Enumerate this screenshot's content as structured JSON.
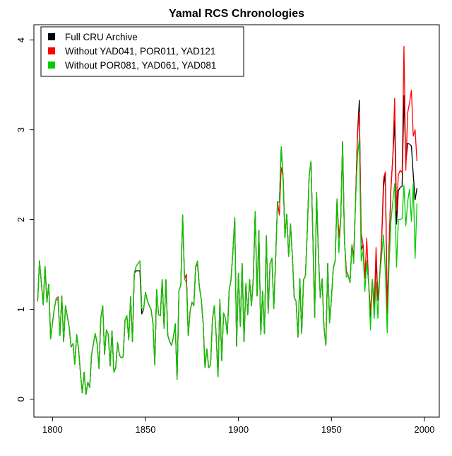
{
  "chart_data": {
    "type": "line",
    "title": "Yamal RCS Chronologies",
    "xlabel": "",
    "ylabel": "",
    "xlim": [
      1790,
      2008
    ],
    "ylim": [
      -0.2,
      4.17
    ],
    "x_ticks": [
      1800,
      1850,
      1900,
      1950,
      2000
    ],
    "x_tick_labels": [
      "1800",
      "1850",
      "1900",
      "1950",
      "2000"
    ],
    "y_ticks": [
      0,
      1,
      2,
      3,
      4
    ],
    "y_tick_labels": [
      "0",
      "1",
      "2",
      "3",
      "4"
    ],
    "grid": false,
    "legend_position": "top-left",
    "x_start": 1792,
    "x_step": 1,
    "series": [
      {
        "name": "Full CRU Archive",
        "color": "#000000",
        "values": [
          1.09,
          1.54,
          1.3,
          1.05,
          1.48,
          1.08,
          1.28,
          0.67,
          0.85,
          1.01,
          1.12,
          1.1,
          0.71,
          1.15,
          0.64,
          1.04,
          0.92,
          0.8,
          0.58,
          0.62,
          0.39,
          0.72,
          0.56,
          0.3,
          0.07,
          0.3,
          0.05,
          0.19,
          0.13,
          0.49,
          0.62,
          0.73,
          0.62,
          0.34,
          0.91,
          1.04,
          0.5,
          0.77,
          0.72,
          0.37,
          0.76,
          0.3,
          0.35,
          0.63,
          0.49,
          0.46,
          0.47,
          0.88,
          0.93,
          0.66,
          1.14,
          0.64,
          1.4,
          1.43,
          1.43,
          1.43,
          0.95,
          1.0,
          1.19,
          1.1,
          1.04,
          1.0,
          0.85,
          0.38,
          1.22,
          0.94,
          0.93,
          1.33,
          0.79,
          1.33,
          0.71,
          0.64,
          0.6,
          0.69,
          0.84,
          0.22,
          1.21,
          1.27,
          2.05,
          1.34,
          1.39,
          0.71,
          0.98,
          1.08,
          1.04,
          1.48,
          1.5,
          1.25,
          1.11,
          0.85,
          0.35,
          0.56,
          0.35,
          0.38,
          0.88,
          1.04,
          0.72,
          0.25,
          1.11,
          0.43,
          0.96,
          0.9,
          0.72,
          1.21,
          1.33,
          1.64,
          2.02,
          0.59,
          1.4,
          0.81,
          1.51,
          0.64,
          1.29,
          0.94,
          1.33,
          1.04,
          1.35,
          2.09,
          1.15,
          1.88,
          0.72,
          1.2,
          0.73,
          1.82,
          0.96,
          1.51,
          1.57,
          1.01,
          1.56,
          2.2,
          2.19,
          2.81,
          2.48,
          1.8,
          2.06,
          1.59,
          1.95,
          1.59,
          1.13,
          1.09,
          0.69,
          1.34,
          0.73,
          1.33,
          1.37,
          1.88,
          2.48,
          2.65,
          1.82,
          0.91,
          2.3,
          1.61,
          1.13,
          1.34,
          0.8,
          0.6,
          1.51,
          0.85,
          1.12,
          1.46,
          1.54,
          2.23,
          1.8,
          2.01,
          2.87,
          1.77,
          1.43,
          1.38,
          1.3,
          1.72,
          1.59,
          2.22,
          2.95,
          3.33,
          1.66,
          1.72,
          1.35,
          1.54,
          1.3,
          0.85,
          1.33,
          1.03,
          1.55,
          1.1,
          1.38,
          1.77,
          2.35,
          2.53,
          0.95,
          1.7,
          2.35,
          2.69,
          3.1,
          1.95,
          2.32,
          2.36,
          2.37,
          3.38,
          2.63,
          2.85,
          2.84,
          2.82,
          2.5,
          2.22,
          2.35
        ]
      },
      {
        "name": "Without YAD041, POR011, YAD121",
        "color": "#ff0000",
        "values": [
          1.09,
          1.54,
          1.3,
          1.05,
          1.48,
          1.08,
          1.28,
          0.67,
          0.85,
          1.01,
          1.12,
          1.14,
          0.71,
          1.15,
          0.64,
          1.04,
          0.92,
          0.8,
          0.58,
          0.62,
          0.39,
          0.72,
          0.56,
          0.3,
          0.07,
          0.3,
          0.05,
          0.19,
          0.13,
          0.49,
          0.62,
          0.73,
          0.62,
          0.34,
          0.91,
          1.04,
          0.5,
          0.77,
          0.72,
          0.37,
          0.76,
          0.3,
          0.35,
          0.63,
          0.49,
          0.46,
          0.47,
          0.88,
          0.93,
          0.66,
          1.14,
          0.64,
          1.4,
          1.48,
          1.51,
          1.54,
          1.01,
          1.0,
          1.19,
          1.1,
          1.04,
          1.0,
          0.85,
          0.38,
          1.22,
          0.94,
          0.93,
          1.33,
          0.79,
          1.33,
          0.71,
          0.64,
          0.6,
          0.69,
          0.84,
          0.22,
          1.21,
          1.27,
          2.05,
          1.34,
          1.39,
          0.71,
          0.98,
          1.08,
          1.04,
          1.48,
          1.5,
          1.25,
          1.11,
          0.85,
          0.35,
          0.56,
          0.35,
          0.38,
          0.88,
          1.04,
          0.72,
          0.25,
          1.11,
          0.43,
          0.96,
          0.9,
          0.72,
          1.21,
          1.33,
          1.64,
          2.02,
          0.59,
          1.4,
          0.81,
          1.51,
          0.64,
          1.29,
          0.94,
          1.33,
          1.04,
          1.35,
          2.09,
          1.15,
          1.88,
          0.72,
          1.2,
          0.73,
          1.82,
          0.96,
          1.51,
          1.57,
          1.01,
          1.56,
          2.2,
          2.05,
          2.58,
          2.48,
          1.8,
          2.06,
          1.59,
          1.95,
          1.59,
          1.13,
          1.09,
          0.69,
          1.34,
          0.73,
          1.33,
          1.37,
          1.88,
          2.48,
          2.65,
          1.82,
          0.91,
          2.3,
          1.61,
          1.13,
          1.34,
          0.8,
          0.6,
          1.51,
          0.85,
          1.12,
          1.46,
          1.54,
          2.23,
          1.8,
          2.01,
          2.87,
          1.77,
          1.43,
          1.38,
          1.3,
          1.72,
          1.59,
          2.22,
          2.95,
          3.2,
          1.85,
          1.72,
          1.35,
          1.79,
          1.3,
          0.97,
          1.33,
          1.03,
          1.69,
          1.1,
          1.38,
          1.77,
          2.46,
          2.53,
          0.95,
          1.7,
          2.35,
          2.7,
          3.35,
          2.1,
          2.5,
          2.55,
          2.52,
          3.93,
          2.55,
          3.19,
          3.3,
          3.44,
          2.93,
          3.0,
          2.65
        ]
      },
      {
        "name": "Without POR081, YAD061, YAD081",
        "color": "#00cc00",
        "values": [
          1.09,
          1.54,
          1.3,
          1.05,
          1.48,
          1.08,
          1.28,
          0.67,
          0.85,
          1.01,
          1.12,
          1.1,
          0.71,
          1.15,
          0.64,
          1.04,
          0.92,
          0.8,
          0.58,
          0.62,
          0.39,
          0.72,
          0.56,
          0.3,
          0.07,
          0.3,
          0.05,
          0.19,
          0.13,
          0.49,
          0.62,
          0.73,
          0.62,
          0.34,
          0.91,
          1.04,
          0.5,
          0.77,
          0.72,
          0.37,
          0.76,
          0.3,
          0.35,
          0.63,
          0.49,
          0.46,
          0.47,
          0.88,
          0.93,
          0.66,
          1.14,
          0.64,
          1.4,
          1.48,
          1.51,
          1.54,
          1.01,
          1.0,
          1.19,
          1.1,
          1.04,
          1.0,
          0.85,
          0.38,
          1.22,
          0.94,
          0.93,
          1.33,
          0.79,
          1.33,
          0.71,
          0.64,
          0.6,
          0.69,
          0.84,
          0.22,
          1.21,
          1.27,
          2.05,
          1.34,
          1.3,
          0.71,
          0.98,
          1.08,
          1.04,
          1.48,
          1.54,
          1.25,
          1.11,
          0.85,
          0.35,
          0.56,
          0.35,
          0.38,
          0.88,
          1.04,
          0.72,
          0.25,
          1.11,
          0.43,
          0.96,
          0.9,
          0.72,
          1.21,
          1.33,
          1.64,
          2.02,
          0.59,
          1.4,
          0.81,
          1.51,
          0.64,
          1.29,
          0.94,
          1.33,
          1.04,
          1.35,
          2.09,
          1.15,
          1.88,
          0.72,
          1.2,
          0.73,
          1.82,
          0.96,
          1.51,
          1.57,
          1.01,
          1.56,
          2.2,
          2.19,
          2.81,
          2.48,
          1.8,
          2.06,
          1.59,
          1.95,
          1.59,
          1.13,
          1.09,
          0.69,
          1.34,
          0.73,
          1.33,
          1.37,
          1.88,
          2.48,
          2.65,
          1.82,
          0.91,
          2.3,
          1.61,
          1.13,
          1.34,
          0.8,
          0.6,
          1.51,
          0.85,
          1.12,
          1.46,
          1.54,
          2.23,
          1.63,
          2.01,
          2.87,
          1.77,
          1.36,
          1.38,
          1.3,
          1.72,
          1.51,
          2.22,
          2.7,
          2.9,
          1.54,
          1.65,
          1.2,
          1.54,
          1.3,
          0.77,
          1.33,
          0.9,
          1.3,
          0.9,
          1.38,
          1.6,
          1.83,
          1.4,
          0.74,
          1.5,
          1.98,
          2.2,
          2.4,
          1.47,
          2.0,
          2.0,
          2.01,
          2.38,
          1.93,
          2.2,
          2.34,
          1.98,
          2.4,
          1.57,
          2.18
        ]
      }
    ]
  }
}
